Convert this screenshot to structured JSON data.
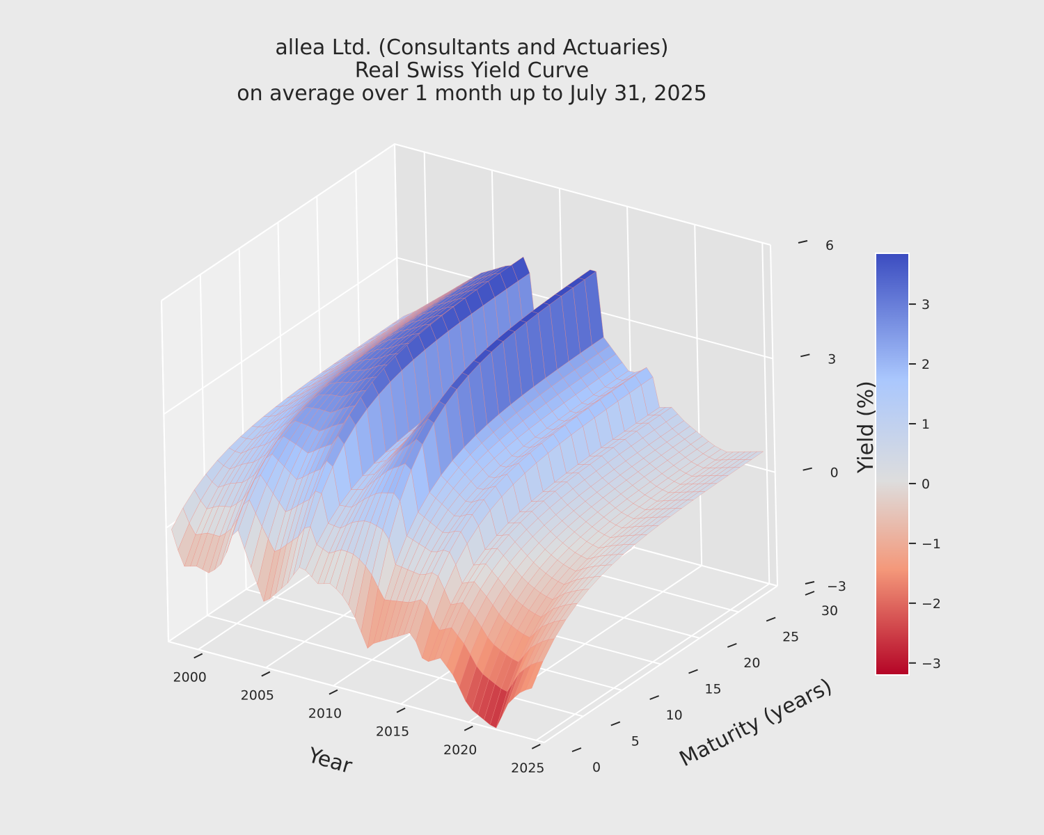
{
  "chart_data": {
    "type": "surface3d",
    "title_lines": [
      "allea Ltd. (Consultants and Actuaries)",
      "Real Swiss Yield Curve",
      "on average over 1 month up to July 31, 2025"
    ],
    "xlabel": "Year",
    "ylabel": "Maturity (years)",
    "zlabel": "",
    "colorbar_label": "Yield (%)",
    "x_ticks": [
      "2000",
      "2005",
      "2010",
      "2015",
      "2020",
      "2025"
    ],
    "y_ticks": [
      "0",
      "5",
      "10",
      "15",
      "20",
      "25",
      "30"
    ],
    "z_ticks": [
      "−3",
      "0",
      "3",
      "6"
    ],
    "colorbar_ticks": [
      "−3",
      "−2",
      "−1",
      "0",
      "1",
      "2",
      "3"
    ],
    "xlim": [
      1997.8,
      2025.6
    ],
    "ylim": [
      0,
      30
    ],
    "zlim": [
      -3,
      6
    ],
    "colorbar_range": [
      -3.2,
      3.85
    ],
    "colormap": "coolwarm",
    "colormap_colors": [
      "#b40426",
      "#f4987a",
      "#dddddd",
      "#aac7fd",
      "#3b4cc0"
    ],
    "grid": true,
    "pane_color": "#eaeaea",
    "grid_color": "#ffffff",
    "edge_color": "#f08a80",
    "long_yield_by_year": [
      {
        "year": 1998.2,
        "long": 1.5
      },
      {
        "year": 1999.0,
        "long": 1.7
      },
      {
        "year": 2000.0,
        "long": 2.0
      },
      {
        "year": 2001.0,
        "long": 2.3
      },
      {
        "year": 2002.0,
        "long": 2.6
      },
      {
        "year": 2003.0,
        "long": 2.9
      },
      {
        "year": 2004.0,
        "long": 3.2
      },
      {
        "year": 2005.0,
        "long": 3.4
      },
      {
        "year": 2006.0,
        "long": 3.6
      },
      {
        "year": 2007.0,
        "long": 3.7
      },
      {
        "year": 2007.5,
        "long": 4.3
      },
      {
        "year": 2008.0,
        "long": 1.8
      },
      {
        "year": 2009.0,
        "long": 2.1
      },
      {
        "year": 2010.0,
        "long": 2.6
      },
      {
        "year": 2011.0,
        "long": 3.3
      },
      {
        "year": 2012.0,
        "long": 3.9
      },
      {
        "year": 2012.5,
        "long": 4.5
      },
      {
        "year": 2013.0,
        "long": 2.4
      },
      {
        "year": 2014.0,
        "long": 2.0
      },
      {
        "year": 2015.0,
        "long": 1.6
      },
      {
        "year": 2016.0,
        "long": 1.8
      },
      {
        "year": 2016.5,
        "long": 2.0
      },
      {
        "year": 2017.0,
        "long": 0.9
      },
      {
        "year": 2018.0,
        "long": 1.0
      },
      {
        "year": 2019.0,
        "long": 0.7
      },
      {
        "year": 2020.0,
        "long": 0.5
      },
      {
        "year": 2021.0,
        "long": 0.3
      },
      {
        "year": 2022.0,
        "long": 0.2
      },
      {
        "year": 2023.0,
        "long": 0.3
      },
      {
        "year": 2024.0,
        "long": 0.4
      },
      {
        "year": 2025.0,
        "long": 0.5
      }
    ],
    "short_yield_by_year": [
      {
        "year": 1998.2,
        "short": 0.0
      },
      {
        "year": 1999.0,
        "short": -0.9
      },
      {
        "year": 2000.0,
        "short": -0.8
      },
      {
        "year": 2001.0,
        "short": -0.9
      },
      {
        "year": 2002.0,
        "short": -0.5
      },
      {
        "year": 2003.0,
        "short": 0.6
      },
      {
        "year": 2004.0,
        "short": -0.4
      },
      {
        "year": 2005.0,
        "short": -1.3
      },
      {
        "year": 2006.0,
        "short": -0.9
      },
      {
        "year": 2007.0,
        "short": -0.5
      },
      {
        "year": 2007.5,
        "short": -0.1
      },
      {
        "year": 2008.0,
        "short": -0.1
      },
      {
        "year": 2009.0,
        "short": -0.4
      },
      {
        "year": 2010.0,
        "short": -0.3
      },
      {
        "year": 2011.0,
        "short": -0.6
      },
      {
        "year": 2012.0,
        "short": -1.2
      },
      {
        "year": 2012.5,
        "short": -1.8
      },
      {
        "year": 2013.0,
        "short": -1.6
      },
      {
        "year": 2014.0,
        "short": -1.4
      },
      {
        "year": 2015.0,
        "short": -1.2
      },
      {
        "year": 2016.0,
        "short": -1.0
      },
      {
        "year": 2016.5,
        "short": -1.6
      },
      {
        "year": 2017.0,
        "short": -1.7
      },
      {
        "year": 2018.0,
        "short": -1.5
      },
      {
        "year": 2019.0,
        "short": -1.9
      },
      {
        "year": 2020.0,
        "short": -2.6
      },
      {
        "year": 2021.0,
        "short": -2.8
      },
      {
        "year": 2022.0,
        "short": -3.0
      },
      {
        "year": 2023.0,
        "short": -2.2
      },
      {
        "year": 2024.0,
        "short": -1.8
      },
      {
        "year": 2025.0,
        "short": -1.6
      }
    ]
  }
}
